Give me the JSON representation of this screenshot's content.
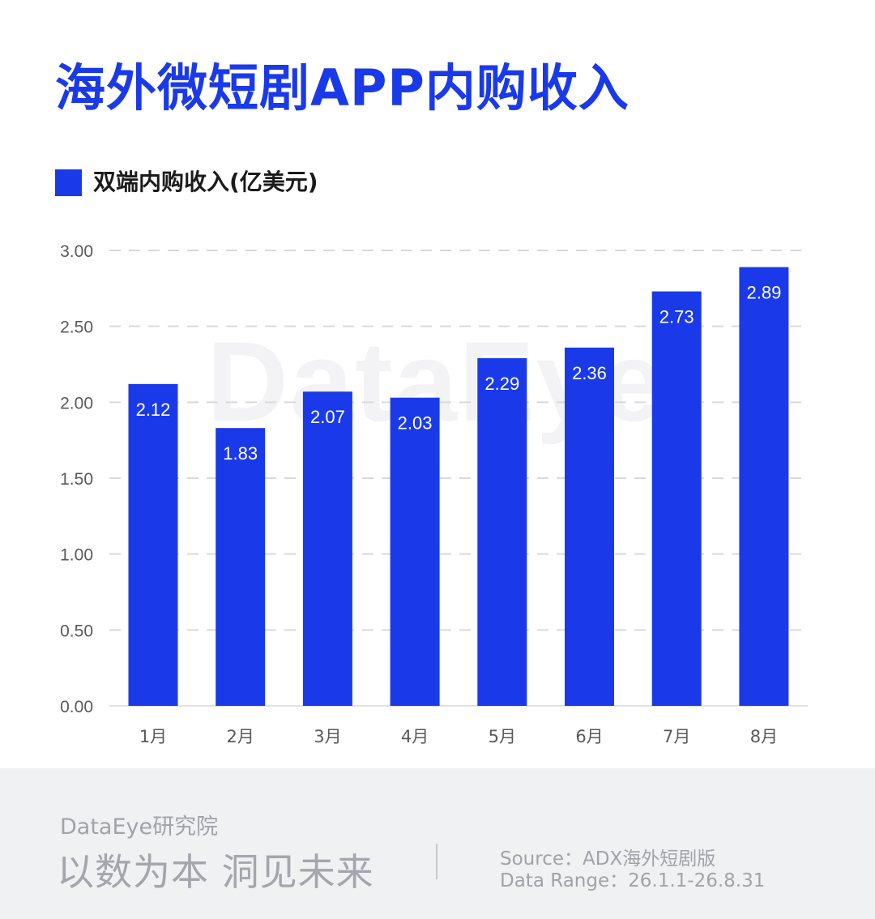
{
  "title": "海外微短剧APP内购收入",
  "watermark": "DataEye",
  "chart_data": {
    "type": "bar",
    "categories": [
      "1月",
      "2月",
      "3月",
      "4月",
      "5月",
      "6月",
      "7月",
      "8月"
    ],
    "series": [
      {
        "name": "双端内购收入(亿美元)",
        "values": [
          2.12,
          1.83,
          2.07,
          2.03,
          2.29,
          2.36,
          2.73,
          2.89
        ]
      }
    ],
    "y_ticks": [
      "0.00",
      "0.50",
      "1.00",
      "1.50",
      "2.00",
      "2.50",
      "3.00"
    ],
    "ylim": [
      0,
      3
    ],
    "grid": true,
    "legend": "top-left",
    "colors": {
      "bar": "#1a3aea",
      "label": "#ffffff",
      "grid": "#d9d9d9",
      "tick": "#595959"
    }
  },
  "footer": {
    "brand": "DataEye研究院",
    "slogan": "以数为本 洞见未来",
    "source": "Source：ADX海外短剧版",
    "range": "Data Range：26.1.1-26.8.31"
  }
}
